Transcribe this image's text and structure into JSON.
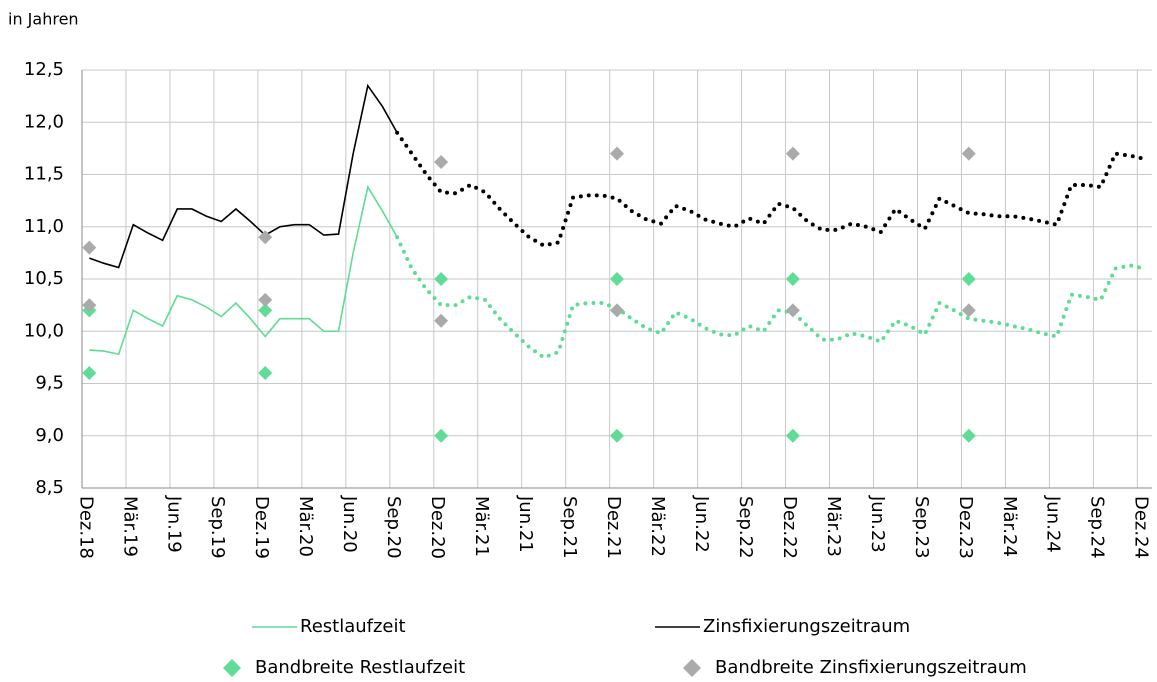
{
  "chart_data": {
    "type": "line",
    "y_axis_label": "in Jahren",
    "categories": [
      "Dez.18",
      null,
      null,
      "Mär.19",
      null,
      null,
      "Jun.19",
      null,
      null,
      "Sep.19",
      null,
      null,
      "Dez.19",
      null,
      null,
      "Mär.20",
      null,
      null,
      "Jun.20",
      null,
      null,
      "Sep.20",
      null,
      null,
      "Dez.20",
      null,
      null,
      "Mär.21",
      null,
      null,
      "Jun.21",
      null,
      null,
      "Sep.21",
      null,
      null,
      "Dez.21",
      null,
      null,
      "Mär.22",
      null,
      null,
      "Jun.22",
      null,
      null,
      "Sep.22",
      null,
      null,
      "Dez.22",
      null,
      null,
      "Mär.23",
      null,
      null,
      "Jun.23",
      null,
      null,
      "Sep.23",
      null,
      null,
      "Dez.23",
      null,
      null,
      "Mär.24",
      null,
      null,
      "Jun.24",
      null,
      null,
      "Sep.24",
      null,
      null,
      "Dez.24"
    ],
    "ylim": [
      8.5,
      12.5
    ],
    "yticks": [
      {
        "value": 8.5,
        "label": "8,5"
      },
      {
        "value": 9.0,
        "label": "9,0"
      },
      {
        "value": 9.5,
        "label": "9,5"
      },
      {
        "value": 10.0,
        "label": "10,0"
      },
      {
        "value": 10.5,
        "label": "10,5"
      },
      {
        "value": 11.0,
        "label": "11,0"
      },
      {
        "value": 11.5,
        "label": "11,5"
      },
      {
        "value": 12.0,
        "label": "12,0"
      },
      {
        "value": 12.5,
        "label": "12,5"
      }
    ],
    "grid": true,
    "dotted_from": "Sep.20",
    "series": [
      {
        "name": "Restlaufzeit",
        "color": "#5fdc96",
        "values": [
          9.82,
          9.81,
          9.78,
          10.2,
          10.12,
          10.05,
          10.34,
          10.3,
          10.23,
          10.14,
          10.27,
          10.12,
          9.95,
          10.12,
          10.12,
          10.12,
          10.0,
          10.0,
          10.75,
          11.38,
          11.15,
          10.9,
          10.6,
          10.4,
          10.25,
          10.25,
          10.33,
          10.3,
          10.12,
          9.98,
          9.85,
          9.75,
          9.8,
          10.25,
          10.27,
          10.27,
          10.22,
          10.12,
          10.03,
          9.98,
          10.18,
          10.12,
          10.03,
          9.97,
          9.96,
          10.05,
          10.0,
          10.2,
          10.18,
          10.05,
          9.92,
          9.92,
          9.98,
          9.95,
          9.9,
          10.1,
          10.05,
          9.97,
          10.27,
          10.2,
          10.12,
          10.1,
          10.08,
          10.05,
          10.02,
          9.98,
          9.95,
          10.35,
          10.33,
          10.3,
          10.6,
          10.63,
          10.6
        ]
      },
      {
        "name": "Zinsfixierungszeitraum",
        "color": "#000000",
        "values": [
          10.7,
          10.65,
          10.61,
          11.02,
          10.94,
          10.87,
          11.17,
          11.17,
          11.1,
          11.05,
          11.17,
          11.05,
          10.92,
          11.0,
          11.02,
          11.02,
          10.92,
          10.93,
          11.7,
          12.35,
          12.15,
          11.9,
          11.7,
          11.5,
          11.33,
          11.32,
          11.4,
          11.33,
          11.17,
          11.03,
          10.9,
          10.82,
          10.85,
          11.28,
          11.3,
          11.3,
          11.27,
          11.15,
          11.07,
          11.03,
          11.2,
          11.15,
          11.07,
          11.03,
          11.0,
          11.08,
          11.03,
          11.22,
          11.18,
          11.05,
          10.97,
          10.97,
          11.03,
          11.0,
          10.95,
          11.17,
          11.07,
          10.98,
          11.27,
          11.2,
          11.13,
          11.12,
          11.1,
          11.1,
          11.08,
          11.05,
          11.02,
          11.4,
          11.4,
          11.38,
          11.7,
          11.68,
          11.65
        ]
      },
      {
        "name": "Bandbreite Restlaufzeit",
        "type": "scatter",
        "marker": "diamond",
        "color": "#5fdc96",
        "points": [
          {
            "x": "Dez.18",
            "values": [
              10.2,
              9.6
            ]
          },
          {
            "x": "Dez.19",
            "values": [
              10.2,
              9.6
            ]
          },
          {
            "x": "Dez.20",
            "values": [
              10.5,
              9.0
            ]
          },
          {
            "x": "Dez.21",
            "values": [
              10.5,
              9.0
            ]
          },
          {
            "x": "Dez.22",
            "values": [
              10.5,
              9.0
            ]
          },
          {
            "x": "Dez.23",
            "values": [
              10.5,
              9.0
            ]
          }
        ]
      },
      {
        "name": "Bandbreite Zinsfixierungszeitraum",
        "type": "scatter",
        "marker": "diamond",
        "color": "#aaaaaa",
        "points": [
          {
            "x": "Dez.18",
            "values": [
              10.8,
              10.25
            ]
          },
          {
            "x": "Dez.19",
            "values": [
              10.9,
              10.3
            ]
          },
          {
            "x": "Dez.20",
            "values": [
              11.62,
              10.1
            ]
          },
          {
            "x": "Dez.21",
            "values": [
              11.7,
              10.2
            ]
          },
          {
            "x": "Dez.22",
            "values": [
              11.7,
              10.2
            ]
          },
          {
            "x": "Dez.23",
            "values": [
              11.7,
              10.2
            ]
          }
        ]
      }
    ]
  }
}
